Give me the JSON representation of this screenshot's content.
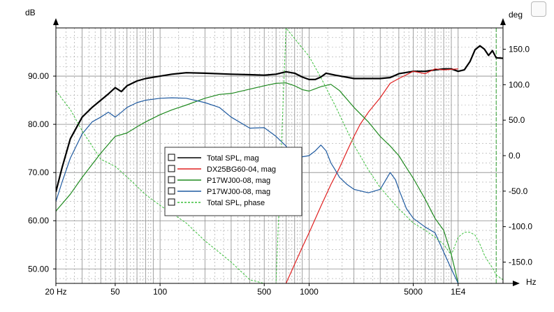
{
  "chart_data": {
    "type": "line",
    "left_axis": {
      "unit": "dB",
      "ylim": [
        47,
        100
      ],
      "ticks": [
        50,
        60,
        70,
        80,
        90
      ],
      "tick_labels": [
        "50.00",
        "60.00",
        "70.00",
        "80.00",
        "90.00"
      ]
    },
    "right_axis": {
      "unit": "deg",
      "ylim": [
        -180,
        180
      ],
      "ticks": [
        -150,
        -100,
        -50,
        0,
        50,
        100,
        150
      ],
      "tick_labels": [
        "-150.0",
        "-100.0",
        "-50.0",
        "0.0",
        "50.0",
        "100.0",
        "150.0"
      ]
    },
    "x_axis": {
      "unit": "Hz",
      "scale": "log",
      "xlim": [
        20,
        20000
      ],
      "ticks": [
        20,
        50,
        100,
        500,
        1000,
        5000,
        10000
      ],
      "tick_labels": [
        "20 Hz",
        "50",
        "100",
        "500",
        "1000",
        "5000",
        "1E4"
      ]
    },
    "grid": true,
    "legend_position": "center-left",
    "series": [
      {
        "name": "Total SPL, mag",
        "axis": "left",
        "color": "#000000",
        "dash": false,
        "width": 2.2,
        "x": [
          20,
          22,
          25,
          30,
          35,
          40,
          45,
          50,
          55,
          60,
          70,
          80,
          100,
          120,
          150,
          200,
          300,
          400,
          500,
          600,
          700,
          800,
          900,
          1000,
          1100,
          1200,
          1300,
          1500,
          2000,
          2500,
          3000,
          3500,
          4000,
          5000,
          6000,
          7000,
          8000,
          9000,
          10000,
          11000,
          12000,
          13000,
          14000,
          15000,
          16000,
          17000,
          18000,
          20000
        ],
        "y": [
          66,
          71,
          77,
          81.5,
          83.5,
          85,
          86.3,
          87.6,
          86.8,
          88,
          89,
          89.5,
          90,
          90.4,
          90.7,
          90.6,
          90.4,
          90.3,
          90.2,
          90.4,
          90.9,
          90.6,
          89.8,
          89.3,
          89.3,
          89.8,
          90.6,
          90.2,
          89.5,
          89.5,
          89.5,
          89.7,
          90.5,
          91,
          91,
          91.3,
          91.5,
          91.5,
          91,
          91.3,
          93,
          95.5,
          96.3,
          95.6,
          94.3,
          95.3,
          93.8,
          93.7
        ]
      },
      {
        "name": "DX25BG60-04, mag",
        "axis": "left",
        "color": "#e02020",
        "dash": false,
        "width": 1.2,
        "x": [
          700,
          800,
          900,
          1000,
          1200,
          1400,
          1600,
          1800,
          2000,
          2200,
          2500,
          3000,
          3500,
          4000,
          5000,
          6000,
          7000,
          8000,
          9000,
          10000
        ],
        "y": [
          47,
          51,
          54.5,
          57.5,
          63,
          67.5,
          71,
          74.5,
          77.5,
          80,
          82.5,
          85.5,
          88.5,
          89.5,
          91,
          90.5,
          91.5,
          91.3,
          91.4,
          91.5
        ]
      },
      {
        "name": "P17WJ00-08, mag",
        "axis": "left",
        "color": "#1f8a1f",
        "dash": false,
        "width": 1.2,
        "x": [
          20,
          25,
          30,
          40,
          50,
          60,
          70,
          80,
          100,
          120,
          150,
          200,
          250,
          300,
          400,
          500,
          600,
          700,
          800,
          900,
          1000,
          1200,
          1400,
          1600,
          2000,
          2500,
          3000,
          3500,
          4000,
          4500,
          5000,
          6000,
          7000,
          8000,
          9000,
          9500,
          10000
        ],
        "y": [
          62,
          65.5,
          69,
          74,
          77.5,
          78.2,
          79.5,
          80.5,
          82,
          83,
          84,
          85.4,
          86.2,
          86.4,
          87.3,
          88,
          88.5,
          88.6,
          88,
          87.2,
          86.9,
          87.8,
          88.3,
          87,
          83.5,
          80.5,
          77.5,
          75.5,
          73.5,
          71,
          68.8,
          64.5,
          60.5,
          58,
          53,
          50,
          47
        ]
      },
      {
        "name": "P17WJ00-08, mag",
        "axis": "left",
        "color": "#1f5aa0",
        "dash": false,
        "width": 1.2,
        "x": [
          20,
          22,
          25,
          30,
          35,
          40,
          45,
          50,
          55,
          60,
          70,
          80,
          100,
          120,
          150,
          200,
          250,
          300,
          400,
          500,
          600,
          700,
          800,
          1000,
          1100,
          1200,
          1300,
          1400,
          1500,
          1600,
          1800,
          2000,
          2500,
          3000,
          3500,
          3800,
          4000,
          4500,
          5000,
          6000,
          7000,
          8000,
          9000,
          10000
        ],
        "y": [
          64,
          68,
          73,
          78,
          80.5,
          81.5,
          82.5,
          81.5,
          82.5,
          83.5,
          84.5,
          85,
          85.4,
          85.5,
          85.4,
          84.5,
          83.5,
          81.5,
          79.2,
          79.3,
          77.5,
          75.5,
          73,
          73.5,
          74.5,
          75.7,
          74.5,
          72,
          70.5,
          69,
          67.5,
          66.5,
          65.8,
          66.5,
          70,
          68.5,
          66.5,
          62.5,
          60.5,
          58.7,
          57.5,
          53.5,
          50,
          47
        ]
      },
      {
        "name": "Total SPL, phase",
        "axis": "right",
        "color": "#3cbf3c",
        "dash": true,
        "width": 1,
        "x": [
          20,
          22,
          25,
          30,
          40,
          50,
          60,
          80,
          100,
          150,
          200,
          300,
          400,
          500,
          600,
          700,
          800,
          1000,
          1200,
          1500,
          2000,
          2500,
          3000,
          4000,
          5000,
          6000,
          7000,
          8000,
          9000,
          10000,
          11000,
          12000,
          13000,
          14000,
          15000,
          16000,
          17000,
          18000,
          20000
        ],
        "y": [
          92,
          80,
          65,
          35,
          -5,
          -15,
          -30,
          -55,
          -70,
          -95,
          -120,
          -150,
          -175,
          -180,
          -180,
          180,
          165,
          140,
          110,
          70,
          15,
          -20,
          -45,
          -75,
          -95,
          -105,
          -115,
          -125,
          -140,
          -115,
          -108,
          -108,
          -112,
          -125,
          -140,
          -150,
          -158,
          -168,
          -175
        ]
      }
    ],
    "legend": [
      {
        "label": "Total SPL, mag",
        "color": "#000000",
        "dash": false
      },
      {
        "label": "DX25BG60-04, mag",
        "color": "#e02020",
        "dash": false
      },
      {
        "label": "P17WJ00-08, mag",
        "color": "#1f8a1f",
        "dash": false
      },
      {
        "label": "P17WJ00-08, mag",
        "color": "#1f5aa0",
        "dash": false
      },
      {
        "label": "Total SPL, phase",
        "color": "#3cbf3c",
        "dash": true
      }
    ],
    "cursor_x": 18000
  }
}
